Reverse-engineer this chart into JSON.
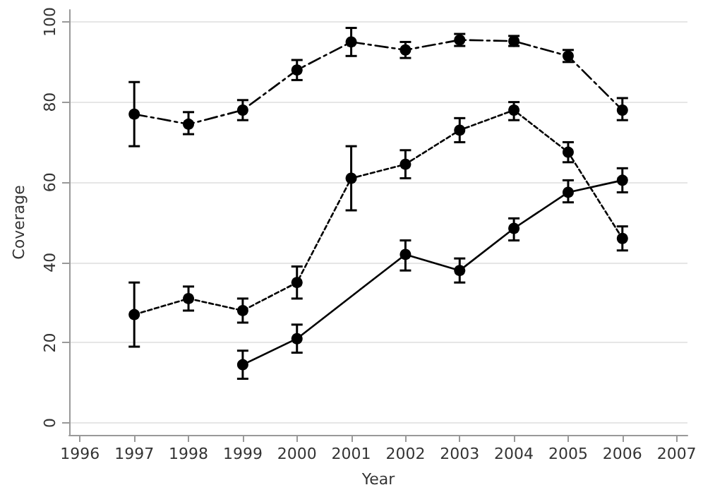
{
  "chart_data": {
    "type": "line",
    "xlabel": "Year",
    "ylabel": "Coverage",
    "xlim": [
      1995.8,
      2007.2
    ],
    "xticks": [
      1996,
      1997,
      1998,
      1999,
      2000,
      2001,
      2002,
      2003,
      2004,
      2005,
      2006,
      2007
    ],
    "ylim": [
      -3,
      103
    ],
    "yticks": [
      0,
      20,
      40,
      60,
      80,
      100
    ],
    "grid": "y",
    "marker": "circle",
    "series": [
      {
        "color": "#000000",
        "line_style": "dashed",
        "x": [
          1997,
          1998,
          1999,
          2000,
          2001,
          2002,
          2003,
          2004,
          2005,
          2006
        ],
        "values": [
          77,
          74.5,
          78,
          88,
          95,
          93,
          95.5,
          95.2,
          91.5,
          78
        ],
        "errors": [
          [
            69,
            85
          ],
          [
            72,
            77.5
          ],
          [
            75.5,
            80.5
          ],
          [
            85.5,
            90.5
          ],
          [
            91.5,
            98.5
          ],
          [
            91,
            95
          ],
          [
            94,
            97
          ],
          [
            94,
            96.5
          ],
          [
            90,
            93
          ],
          [
            75.5,
            81
          ]
        ]
      },
      {
        "color": "#000000",
        "line_style": "dotted",
        "x": [
          1997,
          1998,
          1999,
          2000,
          2001,
          2002,
          2003,
          2004,
          2005,
          2006
        ],
        "values": [
          27,
          31,
          28,
          35,
          61,
          64.5,
          73,
          78,
          67.5,
          46
        ],
        "errors": [
          [
            19,
            35
          ],
          [
            28,
            34
          ],
          [
            25,
            31
          ],
          [
            31,
            39
          ],
          [
            53,
            69
          ],
          [
            61,
            68
          ],
          [
            70,
            76
          ],
          [
            75.5,
            80
          ],
          [
            65,
            70
          ],
          [
            43,
            49
          ]
        ]
      },
      {
        "color": "#000000",
        "line_style": "solid",
        "x": [
          1999,
          2000,
          2002,
          2003,
          2004,
          2005,
          2006
        ],
        "values": [
          14.5,
          21,
          42,
          38,
          48.5,
          57.5,
          60.5
        ],
        "errors": [
          [
            11,
            18
          ],
          [
            17.5,
            24.5
          ],
          [
            38,
            45.5
          ],
          [
            35,
            41
          ],
          [
            45.5,
            51
          ],
          [
            55,
            60.5
          ],
          [
            57.5,
            63.5
          ]
        ]
      }
    ]
  }
}
